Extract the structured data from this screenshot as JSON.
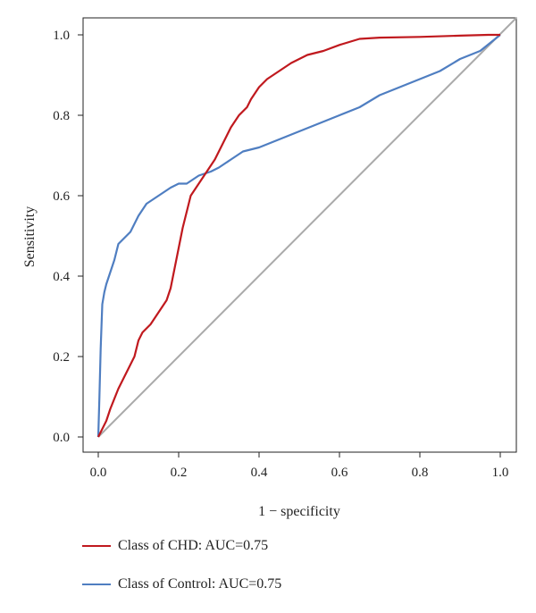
{
  "chart_data": {
    "type": "line",
    "title": "",
    "xlabel": "1 − specificity",
    "ylabel": "Sensitivity",
    "xlim": [
      0,
      1
    ],
    "ylim": [
      0,
      1
    ],
    "x_ticks": [
      "0.0",
      "0.2",
      "0.4",
      "0.6",
      "0.8",
      "1.0"
    ],
    "y_ticks": [
      "0.0",
      "0.2",
      "0.4",
      "0.6",
      "0.8",
      "1.0"
    ],
    "grid": false,
    "legend_position": "bottom",
    "reference_line": {
      "x": [
        0,
        1
      ],
      "y": [
        0,
        1
      ],
      "color": "#aaaaaa"
    },
    "series": [
      {
        "name": "Class of CHD: AUC=0.75",
        "color": "#c0191e",
        "x": [
          0,
          0.01,
          0.02,
          0.03,
          0.05,
          0.07,
          0.09,
          0.1,
          0.11,
          0.13,
          0.15,
          0.17,
          0.18,
          0.19,
          0.2,
          0.21,
          0.22,
          0.23,
          0.25,
          0.27,
          0.29,
          0.31,
          0.33,
          0.35,
          0.37,
          0.38,
          0.4,
          0.42,
          0.45,
          0.48,
          0.52,
          0.56,
          0.6,
          0.65,
          0.7,
          0.8,
          0.9,
          0.97,
          1.0
        ],
        "y": [
          0,
          0.02,
          0.04,
          0.07,
          0.12,
          0.16,
          0.2,
          0.24,
          0.26,
          0.28,
          0.31,
          0.34,
          0.37,
          0.42,
          0.47,
          0.52,
          0.56,
          0.6,
          0.63,
          0.66,
          0.69,
          0.73,
          0.77,
          0.8,
          0.82,
          0.84,
          0.87,
          0.89,
          0.91,
          0.93,
          0.95,
          0.96,
          0.975,
          0.99,
          0.993,
          0.995,
          0.998,
          1.0,
          1.0
        ]
      },
      {
        "name": "Class of Control: AUC=0.75",
        "color": "#4f7ec1",
        "x": [
          0,
          0.003,
          0.006,
          0.01,
          0.015,
          0.02,
          0.03,
          0.04,
          0.05,
          0.06,
          0.08,
          0.1,
          0.12,
          0.15,
          0.18,
          0.2,
          0.22,
          0.25,
          0.28,
          0.3,
          0.33,
          0.36,
          0.4,
          0.45,
          0.5,
          0.55,
          0.6,
          0.65,
          0.7,
          0.75,
          0.8,
          0.85,
          0.9,
          0.95,
          1.0
        ],
        "y": [
          0,
          0.1,
          0.22,
          0.33,
          0.36,
          0.38,
          0.41,
          0.44,
          0.48,
          0.49,
          0.51,
          0.55,
          0.58,
          0.6,
          0.62,
          0.63,
          0.63,
          0.65,
          0.66,
          0.67,
          0.69,
          0.71,
          0.72,
          0.74,
          0.76,
          0.78,
          0.8,
          0.82,
          0.85,
          0.87,
          0.89,
          0.91,
          0.94,
          0.96,
          1.0
        ]
      }
    ]
  }
}
